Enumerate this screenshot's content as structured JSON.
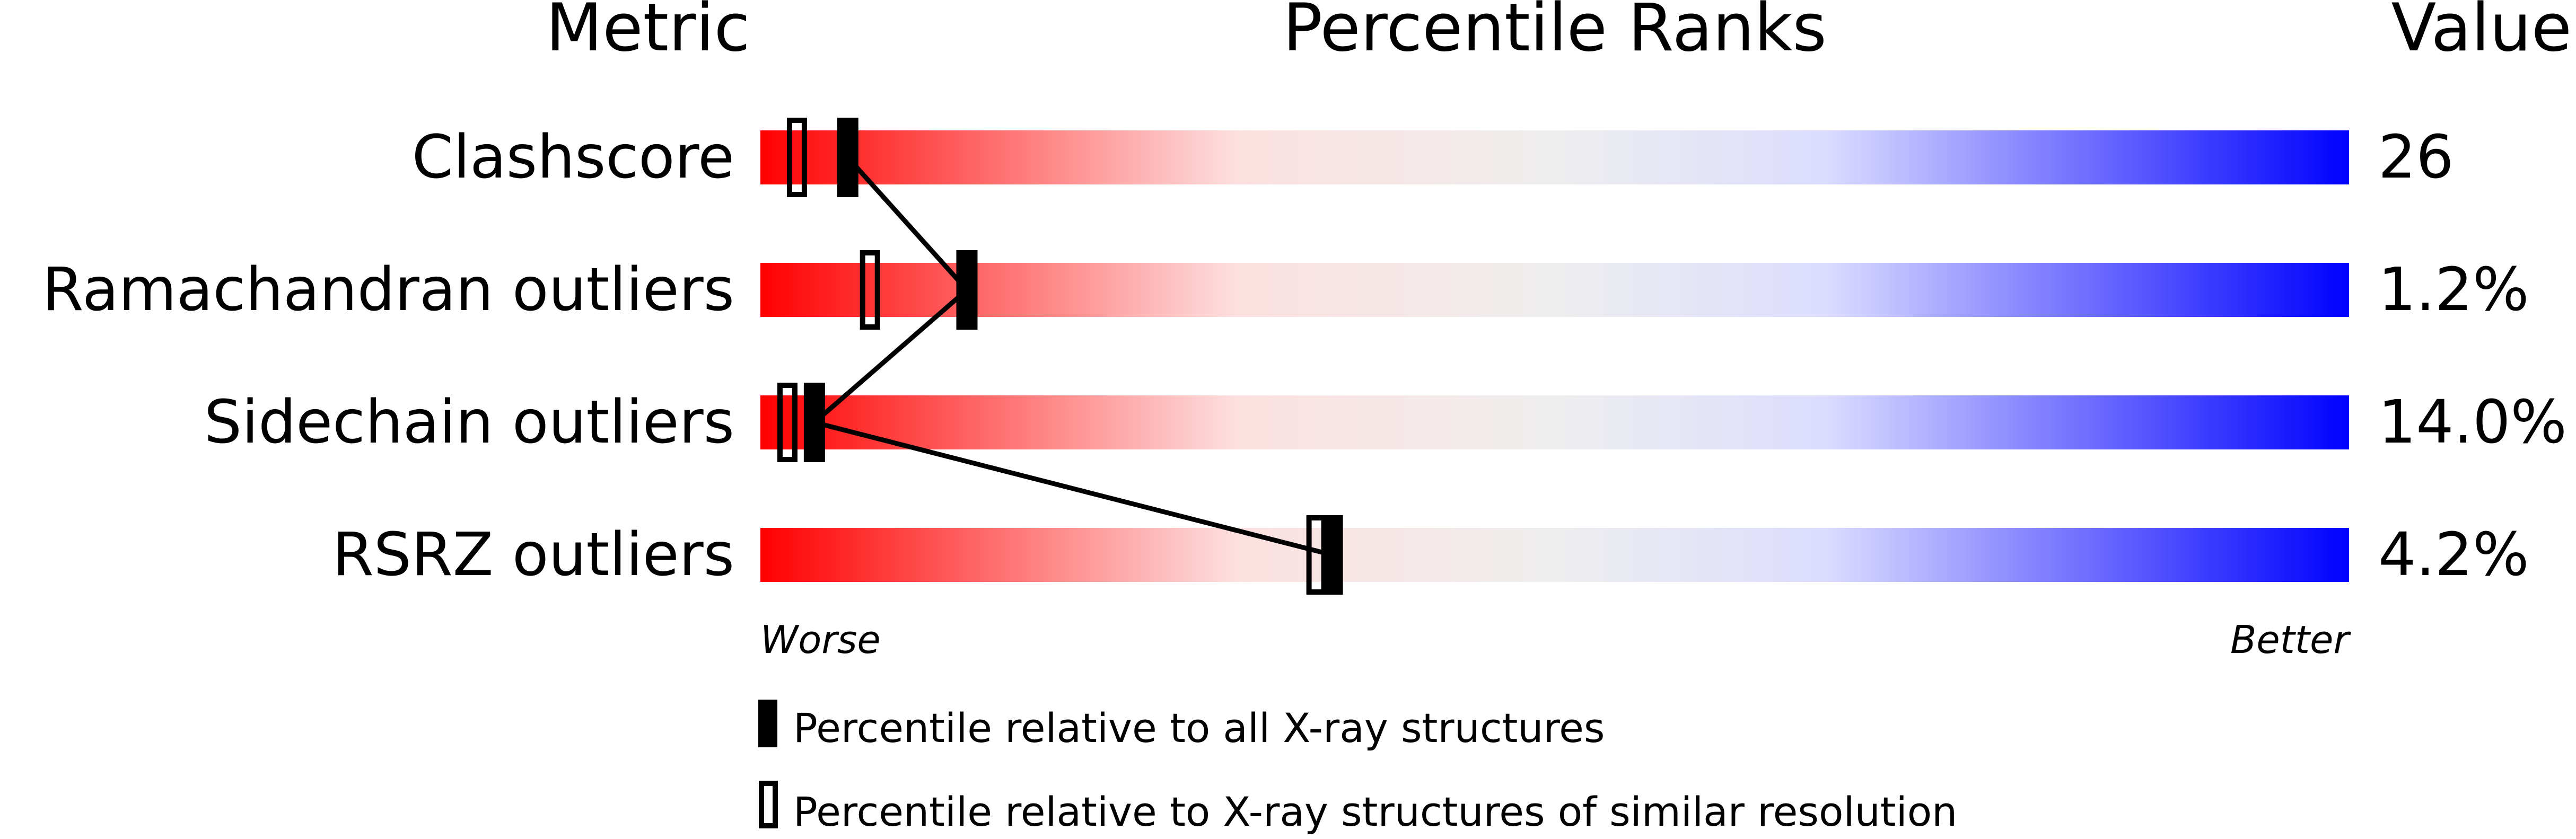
{
  "headers": {
    "metric": "Metric",
    "percentile": "Percentile Ranks",
    "value": "Value"
  },
  "axis": {
    "worse": "Worse",
    "better": "Better"
  },
  "legend": {
    "all": "Percentile relative to all X-ray structures",
    "similar": "Percentile relative to X-ray structures of similar resolution"
  },
  "colors": {
    "worse": "#ff0000",
    "middle": "#eeeeee",
    "better": "#0000ff",
    "marker": "#000000"
  },
  "chart_data": {
    "type": "percentile-slider",
    "xlim": [
      0,
      100
    ],
    "metrics": [
      {
        "name": "Clashscore",
        "value": "26",
        "percentile_all": 5.5,
        "percentile_similar": 2.3
      },
      {
        "name": "Ramachandran outliers",
        "value": "1.2%",
        "percentile_all": 13.0,
        "percentile_similar": 6.9
      },
      {
        "name": "Sidechain outliers",
        "value": "14.0%",
        "percentile_all": 3.4,
        "percentile_similar": 1.7
      },
      {
        "name": "RSRZ outliers",
        "value": "4.2%",
        "percentile_all": 36.0,
        "percentile_similar": 35.0
      }
    ]
  }
}
